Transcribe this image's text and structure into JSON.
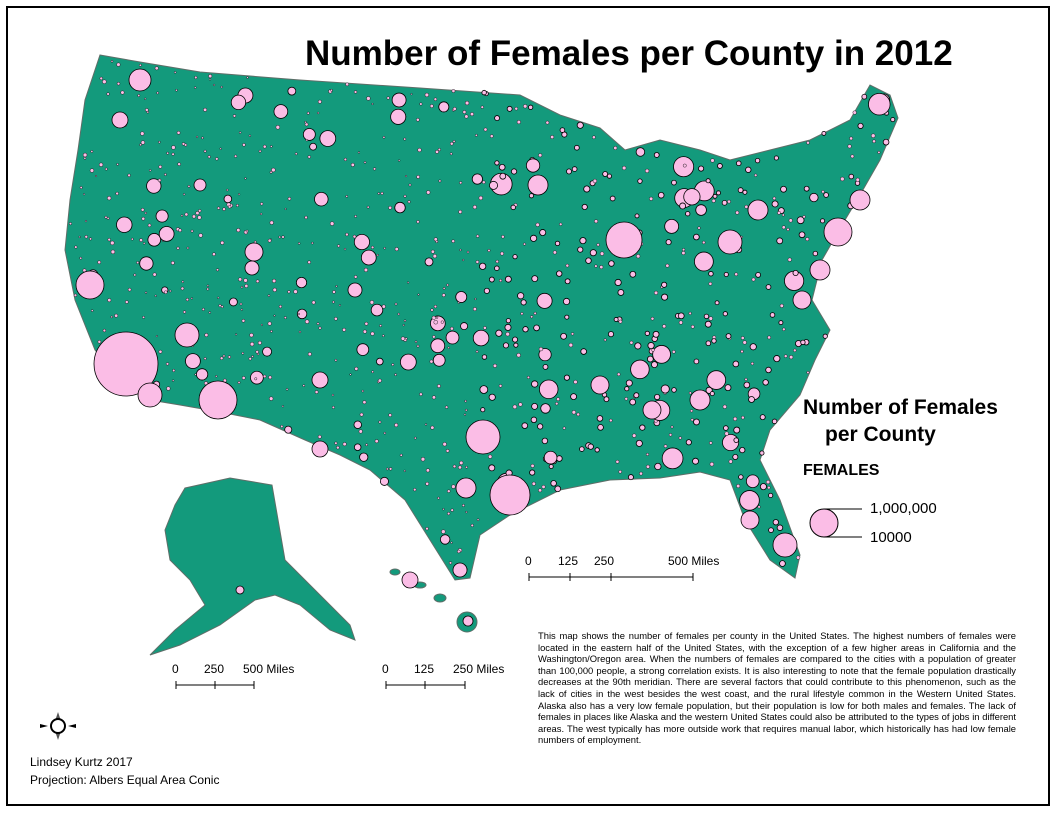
{
  "title": "Number of Females per County in 2012",
  "legend": {
    "title_line1": "Number of Females",
    "title_line2": "per County",
    "field": "FEMALES",
    "max_label": "1,000,000",
    "min_label": "10000",
    "symbol_color": "#fbbde6"
  },
  "colors": {
    "land": "#139a7c",
    "county_lines": "#5e6e68",
    "bubble": "#fbbde6"
  },
  "scale_bars": {
    "conus": {
      "labels": [
        "0",
        "125",
        "250",
        "500 Miles"
      ]
    },
    "alaska": {
      "labels": [
        "0",
        "250",
        "500 Miles"
      ]
    },
    "hawaii": {
      "labels": [
        "0",
        "125",
        "250 Miles"
      ]
    }
  },
  "north_arrow": {
    "n": "N",
    "s": "S",
    "e": "E",
    "w": "W"
  },
  "description": "This map shows the number of females per county in the United States.  The highest numbers of females were located in the eastern half of the United States, with the exception of a few higher areas in California and the Washington/Oregon area.  When the numbers of females are compared to the cities with a population of greater than 100,000 people, a strong correlation exists.  It is also interesting to note that the female population drastically decreases at the 90th meridian.  There are several factors that could contribute to this phenomenon, such as the lack of cities in the west besides the west coast, and the rural lifestyle common in the Western United States.  Alaska also has a very low female population, but their population is low for both males and females.  The lack of females in places like Alaska and the western United States could also be attributed to the types of jobs in different areas.  The west typically has more outside work that requires manual labor, which historically has had low female numbers of employment.",
  "author": "Lindsey Kurtz 2017",
  "projection": "Projection: Albers Equal Area Conic"
}
